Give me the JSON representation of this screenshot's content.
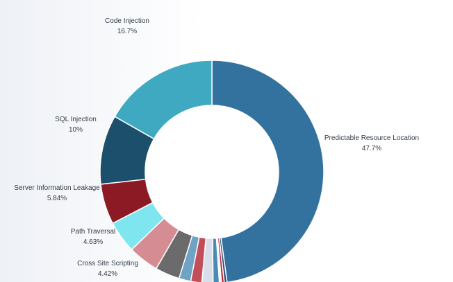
{
  "chart_data": {
    "type": "pie",
    "variant": "donut",
    "slices": [
      {
        "label": "Predictable Resource Location",
        "value": 47.7,
        "value_label": "47.7%",
        "color": "#33729e"
      },
      {
        "label": "",
        "value": 0.4,
        "value_label": "",
        "color": "#2a4d73"
      },
      {
        "label": "",
        "value": 0.4,
        "value_label": "",
        "color": "#c12a3a"
      },
      {
        "label": "",
        "value": 0.3,
        "value_label": "",
        "color": "#e7edf5"
      },
      {
        "label": "",
        "value": 0.9,
        "value_label": "",
        "color": "#4b8ab3"
      },
      {
        "label": "",
        "value": 1.6,
        "value_label": "",
        "color": "#d9dfe8"
      },
      {
        "label": "",
        "value": 1.6,
        "value_label": "",
        "color": "#c24e5a"
      },
      {
        "label": "",
        "value": 1.7,
        "value_label": "",
        "color": "#6fa3c4"
      },
      {
        "label": "",
        "value": 3.53,
        "value_label": "",
        "color": "#6b6b6b"
      },
      {
        "label": "Cross Site Scripting",
        "value": 4.42,
        "value_label": "4.42%",
        "color": "#d58d93"
      },
      {
        "label": "Path Traversal",
        "value": 4.63,
        "value_label": "4.63%",
        "color": "#7fe6f0"
      },
      {
        "label": "Server Information Leakage",
        "value": 5.84,
        "value_label": "5.84%",
        "color": "#8b1a24"
      },
      {
        "label": "SQL Injection",
        "value": 10,
        "value_label": "10%",
        "color": "#1c4f6b"
      },
      {
        "label": "Code Injection",
        "value": 16.7,
        "value_label": "16.7%",
        "color": "#3ea9c1"
      }
    ],
    "legend": "none",
    "labels": "outside"
  }
}
